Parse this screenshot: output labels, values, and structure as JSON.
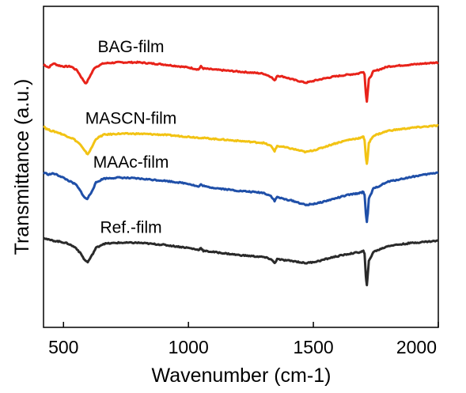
{
  "chart_data": {
    "type": "line",
    "xlabel": "Wavenumber (cm-1)",
    "ylabel": "Transmittance (a.u.)",
    "xlim": [
      420,
      2000
    ],
    "x_ticks": [
      "500",
      "1000",
      "1500",
      "2000"
    ],
    "y_ticks_labeled": false,
    "grid": false,
    "legend": "none (series labeled inline above each curve)",
    "series": [
      {
        "name": "BAG-film",
        "color": "#e8231a",
        "points": [
          [
            420,
            1.98
          ],
          [
            440,
            1.95
          ],
          [
            460,
            1.99
          ],
          [
            480,
            1.97
          ],
          [
            500,
            1.96
          ],
          [
            530,
            1.96
          ],
          [
            555,
            1.92
          ],
          [
            575,
            1.84
          ],
          [
            590,
            1.79
          ],
          [
            605,
            1.86
          ],
          [
            625,
            1.95
          ],
          [
            660,
            1.99
          ],
          [
            720,
            2.0
          ],
          [
            800,
            2.0
          ],
          [
            900,
            1.98
          ],
          [
            1000,
            1.95
          ],
          [
            1040,
            1.93
          ],
          [
            1050,
            1.96
          ],
          [
            1060,
            1.94
          ],
          [
            1100,
            1.93
          ],
          [
            1200,
            1.91
          ],
          [
            1300,
            1.89
          ],
          [
            1330,
            1.86
          ],
          [
            1345,
            1.82
          ],
          [
            1355,
            1.87
          ],
          [
            1380,
            1.86
          ],
          [
            1420,
            1.83
          ],
          [
            1470,
            1.8
          ],
          [
            1520,
            1.83
          ],
          [
            1580,
            1.86
          ],
          [
            1640,
            1.88
          ],
          [
            1680,
            1.89
          ],
          [
            1700,
            1.91
          ],
          [
            1705,
            1.88
          ],
          [
            1710,
            1.7
          ],
          [
            1714,
            1.62
          ],
          [
            1718,
            1.72
          ],
          [
            1722,
            1.83
          ],
          [
            1740,
            1.91
          ],
          [
            1800,
            1.96
          ],
          [
            1900,
            1.98
          ],
          [
            2000,
            2.0
          ]
        ]
      },
      {
        "name": "MASCN-film",
        "color": "#f2c314",
        "points": [
          [
            420,
            1.38
          ],
          [
            430,
            1.35
          ],
          [
            450,
            1.33
          ],
          [
            480,
            1.31
          ],
          [
            510,
            1.28
          ],
          [
            540,
            1.25
          ],
          [
            565,
            1.2
          ],
          [
            585,
            1.13
          ],
          [
            597,
            1.1
          ],
          [
            610,
            1.15
          ],
          [
            630,
            1.25
          ],
          [
            660,
            1.29
          ],
          [
            720,
            1.3
          ],
          [
            800,
            1.3
          ],
          [
            900,
            1.29
          ],
          [
            1000,
            1.27
          ],
          [
            1100,
            1.25
          ],
          [
            1200,
            1.23
          ],
          [
            1300,
            1.21
          ],
          [
            1330,
            1.18
          ],
          [
            1345,
            1.13
          ],
          [
            1355,
            1.18
          ],
          [
            1380,
            1.17
          ],
          [
            1420,
            1.15
          ],
          [
            1470,
            1.12
          ],
          [
            1520,
            1.15
          ],
          [
            1580,
            1.2
          ],
          [
            1640,
            1.24
          ],
          [
            1690,
            1.26
          ],
          [
            1700,
            1.27
          ],
          [
            1705,
            1.24
          ],
          [
            1710,
            1.08
          ],
          [
            1714,
            1.0
          ],
          [
            1718,
            1.08
          ],
          [
            1722,
            1.21
          ],
          [
            1740,
            1.28
          ],
          [
            1800,
            1.33
          ],
          [
            1900,
            1.36
          ],
          [
            2000,
            1.38
          ]
        ]
      },
      {
        "name": "MAAc-film",
        "color": "#1f4fa8",
        "points": [
          [
            420,
            0.92
          ],
          [
            440,
            0.9
          ],
          [
            460,
            0.91
          ],
          [
            490,
            0.88
          ],
          [
            520,
            0.84
          ],
          [
            550,
            0.8
          ],
          [
            570,
            0.73
          ],
          [
            585,
            0.67
          ],
          [
            595,
            0.66
          ],
          [
            610,
            0.72
          ],
          [
            630,
            0.82
          ],
          [
            660,
            0.86
          ],
          [
            720,
            0.87
          ],
          [
            800,
            0.86
          ],
          [
            900,
            0.84
          ],
          [
            1000,
            0.81
          ],
          [
            1040,
            0.78
          ],
          [
            1050,
            0.8
          ],
          [
            1070,
            0.78
          ],
          [
            1100,
            0.77
          ],
          [
            1200,
            0.74
          ],
          [
            1300,
            0.72
          ],
          [
            1330,
            0.69
          ],
          [
            1345,
            0.64
          ],
          [
            1355,
            0.68
          ],
          [
            1380,
            0.66
          ],
          [
            1420,
            0.64
          ],
          [
            1470,
            0.6
          ],
          [
            1520,
            0.62
          ],
          [
            1580,
            0.66
          ],
          [
            1640,
            0.7
          ],
          [
            1690,
            0.72
          ],
          [
            1700,
            0.73
          ],
          [
            1705,
            0.7
          ],
          [
            1710,
            0.52
          ],
          [
            1714,
            0.44
          ],
          [
            1718,
            0.52
          ],
          [
            1722,
            0.66
          ],
          [
            1740,
            0.76
          ],
          [
            1800,
            0.83
          ],
          [
            1900,
            0.88
          ],
          [
            2000,
            0.92
          ]
        ]
      },
      {
        "name": "Ref.-film",
        "color": "#2a2a2a",
        "points": [
          [
            420,
            0.28
          ],
          [
            440,
            0.26
          ],
          [
            460,
            0.25
          ],
          [
            490,
            0.24
          ],
          [
            520,
            0.22
          ],
          [
            550,
            0.18
          ],
          [
            570,
            0.12
          ],
          [
            585,
            0.06
          ],
          [
            597,
            0.04
          ],
          [
            610,
            0.09
          ],
          [
            630,
            0.18
          ],
          [
            660,
            0.22
          ],
          [
            720,
            0.23
          ],
          [
            800,
            0.23
          ],
          [
            900,
            0.21
          ],
          [
            1000,
            0.18
          ],
          [
            1040,
            0.16
          ],
          [
            1050,
            0.18
          ],
          [
            1060,
            0.15
          ],
          [
            1100,
            0.14
          ],
          [
            1200,
            0.11
          ],
          [
            1300,
            0.09
          ],
          [
            1330,
            0.07
          ],
          [
            1345,
            0.03
          ],
          [
            1355,
            0.07
          ],
          [
            1380,
            0.06
          ],
          [
            1420,
            0.05
          ],
          [
            1470,
            0.03
          ],
          [
            1520,
            0.05
          ],
          [
            1580,
            0.09
          ],
          [
            1640,
            0.12
          ],
          [
            1690,
            0.14
          ],
          [
            1700,
            0.15
          ],
          [
            1705,
            0.12
          ],
          [
            1710,
            -0.1
          ],
          [
            1714,
            -0.18
          ],
          [
            1718,
            -0.08
          ],
          [
            1722,
            0.05
          ],
          [
            1740,
            0.14
          ],
          [
            1800,
            0.2
          ],
          [
            1900,
            0.23
          ],
          [
            2000,
            0.25
          ]
        ]
      }
    ],
    "ylim": [
      -0.6,
      2.55
    ]
  }
}
